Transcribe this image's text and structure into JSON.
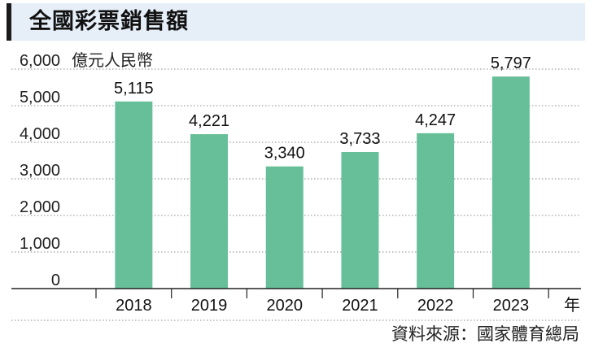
{
  "header": {
    "title": "全國彩票銷售額"
  },
  "source": "資料來源：國家體育總局",
  "colors": {
    "bar": "#66bf98",
    "grid": "#8a8a8a",
    "title_bg": "#e6eef8"
  },
  "chart_data": {
    "type": "bar",
    "title": "全國彩票銷售額",
    "ylabel": "億元人民幣",
    "xlabel": "年",
    "categories": [
      "2018",
      "2019",
      "2020",
      "2021",
      "2022",
      "2023"
    ],
    "values": [
      5115,
      4221,
      3340,
      3733,
      4247,
      5797
    ],
    "value_labels": [
      "5,115",
      "4,221",
      "3,340",
      "3,733",
      "4,247",
      "5,797"
    ],
    "y_ticks": [
      0,
      1000,
      2000,
      3000,
      4000,
      5000,
      6000
    ],
    "y_tick_labels": [
      "0",
      "1,000",
      "2,000",
      "3,000",
      "4,000",
      "5,000",
      "6,000"
    ],
    "ylim": [
      0,
      6000
    ],
    "grid": true,
    "legend": "none"
  }
}
